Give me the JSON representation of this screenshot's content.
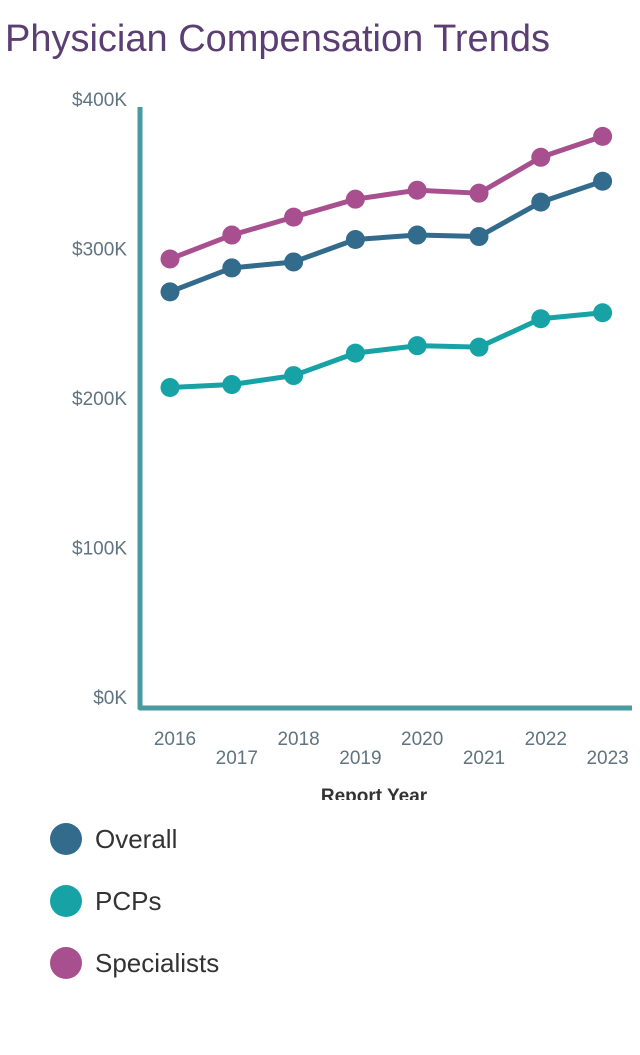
{
  "chart_data": {
    "type": "line",
    "title": "Physician Compensation Trends",
    "xlabel": "Report Year",
    "ylabel": "",
    "x": [
      "2016",
      "2017",
      "2018",
      "2019",
      "2020",
      "2021",
      "2022",
      "2023"
    ],
    "ylim": [
      0,
      400000
    ],
    "yticks": [
      0,
      100000,
      200000,
      300000,
      400000
    ],
    "ytick_labels": [
      "$0K",
      "$100K",
      "$200K",
      "$300K",
      "$400K"
    ],
    "grid": false,
    "legend_position": "bottom-left",
    "series": [
      {
        "name": "Overall",
        "color": "#336b8c",
        "values": [
          271000,
          287000,
          291000,
          306000,
          309000,
          308000,
          331000,
          345000
        ]
      },
      {
        "name": "PCPs",
        "color": "#17a3a6",
        "values": [
          207000,
          209000,
          215000,
          230000,
          235000,
          234000,
          253000,
          257000
        ]
      },
      {
        "name": "Specialists",
        "color": "#a8508f",
        "values": [
          293000,
          309000,
          321000,
          333000,
          339000,
          337000,
          361000,
          375000
        ]
      }
    ],
    "axis_color": "#4a9aa0"
  }
}
